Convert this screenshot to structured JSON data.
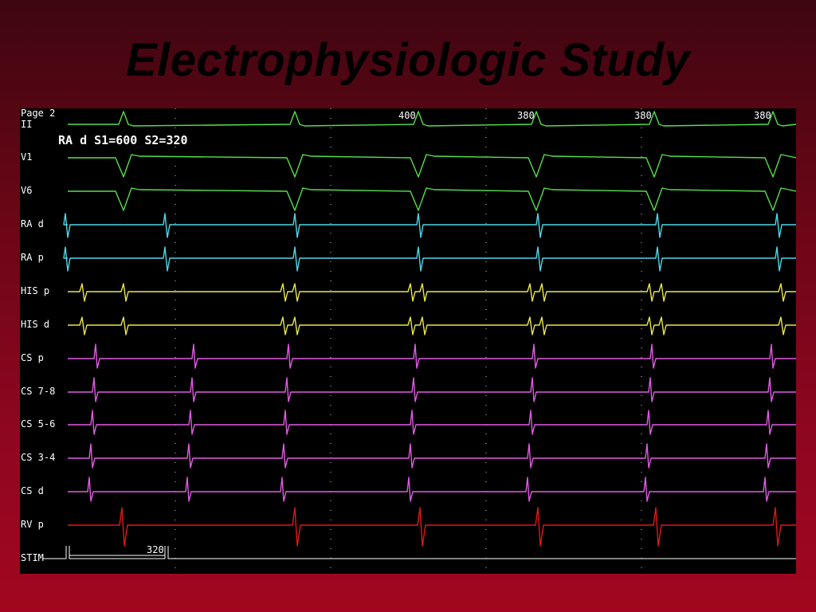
{
  "title": "Electrophysiologic Study",
  "recording": {
    "page_label": "Page 2",
    "protocol_label": "RA d  S1=600  S2=320",
    "channels": [
      {
        "label": "II",
        "color": "#55e04a"
      },
      {
        "label": "V1",
        "color": "#55e04a"
      },
      {
        "label": "V6",
        "color": "#55e04a"
      },
      {
        "label": "RA d",
        "color": "#4ed8e8"
      },
      {
        "label": "RA p",
        "color": "#4ed8e8"
      },
      {
        "label": "HIS p",
        "color": "#ece64a"
      },
      {
        "label": "HIS d",
        "color": "#ece64a"
      },
      {
        "label": "CS p",
        "color": "#e45ae6"
      },
      {
        "label": "CS 7-8",
        "color": "#e45ae6"
      },
      {
        "label": "CS 5-6",
        "color": "#e45ae6"
      },
      {
        "label": "CS 3-4",
        "color": "#e45ae6"
      },
      {
        "label": "CS d",
        "color": "#e45ae6"
      },
      {
        "label": "RV p",
        "color": "#e01818"
      },
      {
        "label": "STIM",
        "color": "#ffffff"
      }
    ],
    "cycle_intervals": [
      "400",
      "380",
      "380",
      "380"
    ],
    "stim_interval": "320"
  }
}
